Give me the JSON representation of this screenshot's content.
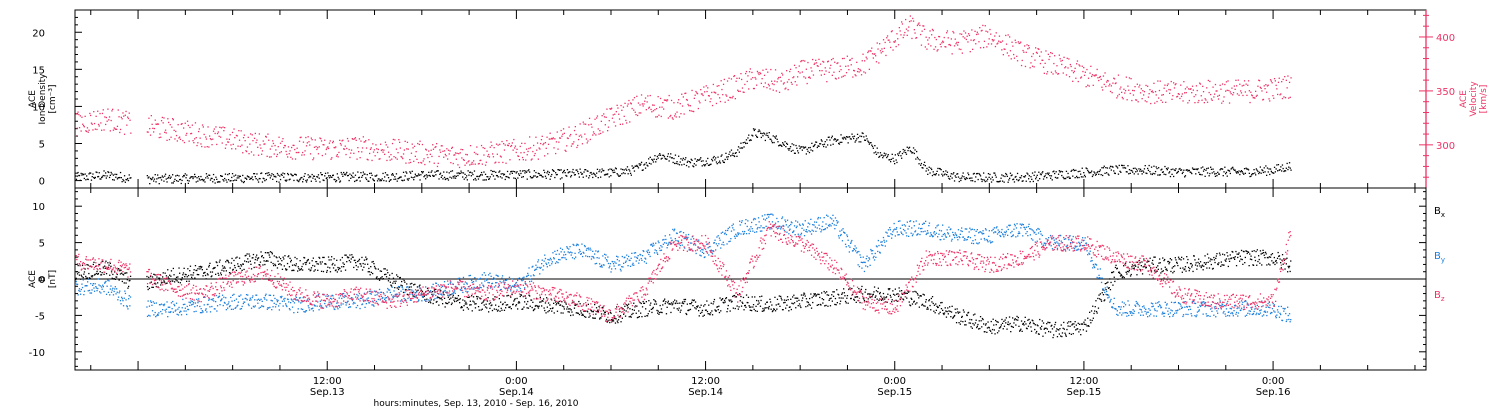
{
  "chart_data": {
    "xlabel": "hours:minutes, Sep. 13, 2010 - Sep. 16, 2010",
    "x_range_hours": [
      -4,
      81.7
    ],
    "x_ticks": [
      {
        "hours": 12,
        "time": "12:00",
        "date": "Sep.13"
      },
      {
        "hours": 24,
        "time": "0:00",
        "date": "Sep.14"
      },
      {
        "hours": 36,
        "time": "12:00",
        "date": "Sep.14"
      },
      {
        "hours": 48,
        "time": "0:00",
        "date": "Sep.15"
      },
      {
        "hours": 60,
        "time": "12:00",
        "date": "Sep.15"
      },
      {
        "hours": 72,
        "time": "0:00",
        "date": "Sep.16"
      }
    ],
    "panels": [
      {
        "id": "plasma",
        "type": "scatter",
        "ylabel_left": [
          "ACE",
          "Ion Density",
          "[cm⁻³]"
        ],
        "ylabel_right": [
          "ACE",
          "Velocity",
          "[km/s]"
        ],
        "ylim_left": [
          -1,
          23
        ],
        "yticks_left": [
          0,
          5,
          10,
          15,
          20
        ],
        "ylim_right": [
          260,
          425
        ],
        "yticks_right": [
          300,
          350,
          400
        ],
        "series": [
          {
            "name": "Ion Density",
            "axis": "left",
            "color": "#000000",
            "x": [
              -4,
              -2,
              0,
              2,
              4,
              6,
              8,
              10,
              12,
              14,
              16,
              18,
              20,
              22,
              24,
              26,
              28,
              30,
              31.5,
              33,
              35,
              37,
              38,
              39,
              40,
              42,
              44,
              46,
              47,
              48,
              49,
              50,
              52,
              54,
              56,
              58,
              60,
              62,
              64,
              66,
              68,
              70,
              72,
              73
            ],
            "y": [
              0.5,
              0.8,
              0.3,
              0.3,
              0.4,
              0.4,
              0.5,
              0.5,
              0.5,
              0.6,
              0.6,
              0.8,
              0.8,
              0.8,
              0.9,
              0.9,
              1.0,
              1.1,
              1.5,
              3.5,
              2.5,
              3.0,
              4.0,
              6.5,
              6.0,
              4.0,
              5.5,
              6.0,
              3.5,
              3.0,
              4.5,
              1.5,
              0.5,
              0.5,
              0.5,
              0.8,
              1.2,
              1.5,
              1.5,
              1.2,
              1.3,
              1.2,
              1.5,
              2.0
            ]
          },
          {
            "name": "Velocity",
            "axis": "right",
            "color": "#ee3366",
            "x": [
              -4,
              -2,
              0,
              2,
              4,
              6,
              8,
              10,
              12,
              14,
              16,
              18,
              20,
              22,
              24,
              26,
              28,
              30,
              32,
              34,
              36,
              37,
              38,
              39,
              40,
              41,
              42,
              44,
              46,
              48,
              49,
              50,
              52,
              54,
              56,
              58,
              60,
              62,
              64,
              66,
              68,
              70,
              72,
              73
            ],
            "y": [
              320,
              325,
              318,
              315,
              310,
              305,
              300,
              298,
              297,
              298,
              295,
              293,
              290,
              292,
              295,
              300,
              310,
              325,
              338,
              335,
              345,
              350,
              355,
              362,
              360,
              358,
              368,
              370,
              375,
              400,
              410,
              398,
              395,
              402,
              385,
              375,
              365,
              355,
              350,
              348,
              350,
              350,
              352,
              355
            ]
          }
        ]
      },
      {
        "id": "magnetic",
        "type": "scatter",
        "ylabel_left": [
          "ACE",
          "B",
          "[nT]"
        ],
        "ylim": [
          -12.5,
          12.5
        ],
        "yticks": [
          -10,
          -5,
          0,
          5,
          10
        ],
        "zero_line": true,
        "legend_position": "right",
        "series": [
          {
            "name": "Bx",
            "label_main": "B",
            "label_sub": "x",
            "color": "#000000",
            "x": [
              -4,
              -2,
              0,
              2,
              4,
              6,
              8,
              10,
              12,
              14,
              16,
              18,
              20,
              22,
              24,
              26,
              28,
              30,
              32,
              34,
              36,
              38,
              40,
              42,
              44,
              46,
              48,
              50,
              52,
              54,
              56,
              58,
              60,
              62,
              64,
              66,
              68,
              70,
              72,
              73
            ],
            "y": [
              1,
              1.5,
              -1,
              0.5,
              1,
              2,
              3,
              2,
              2,
              2.5,
              0,
              -2,
              -3,
              -3.5,
              -3,
              -3.5,
              -4,
              -5,
              -4,
              -3.5,
              -4,
              -3,
              -3.5,
              -3,
              -2.5,
              -2,
              -2,
              -3,
              -5,
              -6.5,
              -6,
              -7,
              -6.5,
              1,
              2,
              2,
              2.5,
              3,
              3,
              2
            ]
          },
          {
            "name": "By",
            "label_main": "B",
            "label_sub": "y",
            "color": "#1a7fdd",
            "x": [
              -4,
              -2,
              0,
              2,
              4,
              6,
              8,
              10,
              12,
              14,
              16,
              18,
              20,
              22,
              24,
              26,
              28,
              30,
              32,
              34,
              36,
              38,
              40,
              42,
              44,
              46,
              48,
              50,
              52,
              54,
              56,
              58,
              60,
              62,
              64,
              66,
              68,
              70,
              72,
              73
            ],
            "y": [
              -1,
              -1,
              -4,
              -4,
              -3.5,
              -3,
              -3,
              -3.5,
              -3,
              -3,
              -2,
              -2,
              -1,
              0,
              -1,
              3,
              4,
              2,
              3,
              6,
              4,
              7,
              8,
              7,
              8,
              2,
              7,
              7,
              6,
              6,
              7,
              5,
              5,
              -4,
              -4,
              -4,
              -4,
              -4,
              -4,
              -5
            ]
          },
          {
            "name": "Bz",
            "label_main": "B",
            "label_sub": "z",
            "color": "#ee3366",
            "x": [
              -4,
              -2,
              0,
              2,
              4,
              6,
              8,
              10,
              12,
              14,
              16,
              18,
              20,
              22,
              24,
              26,
              28,
              30,
              32,
              34,
              36,
              38,
              40,
              42,
              44,
              46,
              48,
              50,
              52,
              54,
              56,
              58,
              60,
              62,
              64,
              66,
              68,
              70,
              72,
              73
            ],
            "y": [
              2.5,
              2,
              1,
              -1,
              -2,
              0,
              1,
              -2,
              -3,
              -2,
              -3,
              -2,
              -1,
              -2,
              -1,
              -2,
              -3,
              -5,
              -2,
              5,
              5,
              -2,
              7,
              5,
              2,
              -3,
              -4,
              3,
              3,
              2,
              3,
              5,
              5,
              3,
              2,
              -2,
              -3,
              -3,
              -3,
              6
            ]
          }
        ]
      }
    ]
  }
}
